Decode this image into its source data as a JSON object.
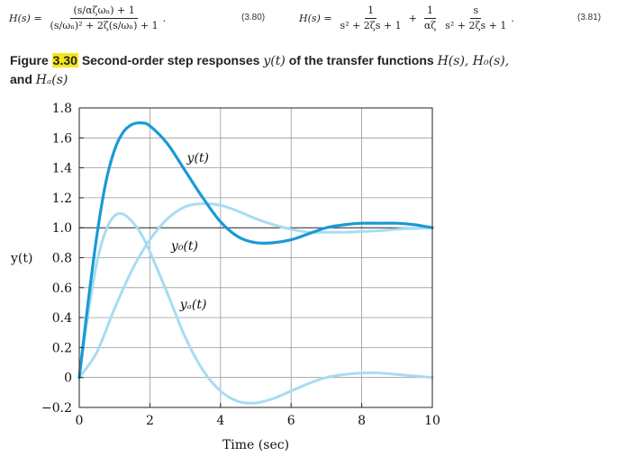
{
  "equations": {
    "eq380": {
      "lhs": "H(s) =",
      "numerator": "(s/αζωₙ) + 1",
      "denominator": "(s/ωₙ)² + 2ζ(s/ωₙ) + 1",
      "trailer": ".",
      "number": "(3.80)"
    },
    "eq381": {
      "lhs": "H(s) =",
      "frac1_num": "1",
      "frac1_den": "s² + 2ζs + 1",
      "plus": "+",
      "frac2_num": "1",
      "frac2_den": "αζ",
      "frac3_num": "s",
      "frac3_den": "s² + 2ζs + 1",
      "trailer": ".",
      "number": "(3.81)"
    }
  },
  "caption": {
    "label": "Figure",
    "number": "3.30",
    "text": "Second-order step responses",
    "math_y": "y(t)",
    "text2": "of the transfer functions",
    "math_list": "H(s), H₀(s),",
    "line2_and": "and",
    "math_hd": "Hₐ(s)"
  },
  "chart_data": {
    "type": "line",
    "xlabel": "Time (sec)",
    "ylabel": "y(t)",
    "xlim": [
      0,
      10
    ],
    "ylim": [
      -0.2,
      1.8
    ],
    "x_ticks": [
      "0",
      "2",
      "4",
      "6",
      "8",
      "10"
    ],
    "y_ticks": [
      "1.8",
      "1.6",
      "1.4",
      "1.2",
      "1.0",
      "0.8",
      "0.6",
      "0.4",
      "0.2",
      "0",
      "−0.2"
    ],
    "grid": true,
    "reference_line": 1.0,
    "colors": {
      "y": "#1a9ad6",
      "y0": "#a8dcf2",
      "yd": "#a8dcf2",
      "axis": "#222222",
      "grid": "#999999"
    },
    "series": [
      {
        "name": "y(t)",
        "x": [
          0,
          0.25,
          0.5,
          0.75,
          1.0,
          1.25,
          1.5,
          1.75,
          2.0,
          2.5,
          3.0,
          3.5,
          4.0,
          4.5,
          5.0,
          5.5,
          6.0,
          6.5,
          7.0,
          7.5,
          8.0,
          8.5,
          9.0,
          9.5,
          10.0
        ],
        "values": [
          0,
          0.5,
          0.95,
          1.3,
          1.52,
          1.64,
          1.69,
          1.7,
          1.68,
          1.56,
          1.38,
          1.2,
          1.04,
          0.94,
          0.9,
          0.9,
          0.92,
          0.96,
          1.0,
          1.02,
          1.03,
          1.03,
          1.03,
          1.02,
          1.0
        ]
      },
      {
        "name": "y₀(t)",
        "x": [
          0,
          0.5,
          1.0,
          1.5,
          2.0,
          2.5,
          3.0,
          3.5,
          4.0,
          4.5,
          5.0,
          5.5,
          6.0,
          6.5,
          7.0,
          7.5,
          8.0,
          8.5,
          9.0,
          9.5,
          10.0
        ],
        "values": [
          0,
          0.17,
          0.46,
          0.72,
          0.92,
          1.06,
          1.14,
          1.16,
          1.15,
          1.11,
          1.06,
          1.02,
          0.99,
          0.97,
          0.97,
          0.97,
          0.975,
          0.98,
          0.99,
          0.995,
          1.0
        ]
      },
      {
        "name": "yₐ(t)",
        "x": [
          0,
          0.25,
          0.5,
          0.75,
          1.0,
          1.25,
          1.5,
          1.75,
          2.0,
          2.5,
          3.0,
          3.5,
          4.0,
          4.5,
          5.0,
          5.5,
          6.0,
          6.5,
          7.0,
          7.5,
          8.0,
          8.5,
          9.0,
          9.5,
          10.0
        ],
        "values": [
          0,
          0.42,
          0.77,
          0.98,
          1.08,
          1.09,
          1.04,
          0.96,
          0.84,
          0.56,
          0.27,
          0.05,
          -0.09,
          -0.16,
          -0.17,
          -0.14,
          -0.09,
          -0.04,
          0.0,
          0.02,
          0.03,
          0.03,
          0.02,
          0.01,
          0.0
        ]
      }
    ]
  }
}
